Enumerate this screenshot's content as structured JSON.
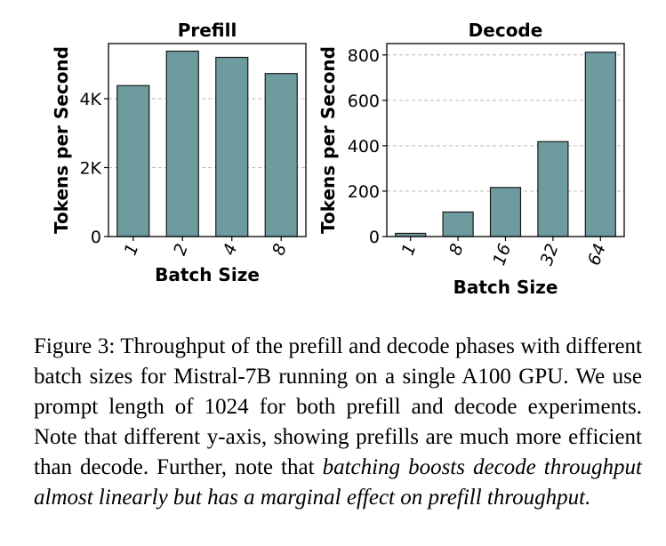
{
  "chart_data": [
    {
      "type": "bar",
      "title": "Prefill",
      "xlabel": "Batch Size",
      "ylabel": "Tokens per Second",
      "categories": [
        "1",
        "2",
        "4",
        "8"
      ],
      "values": [
        4380,
        5380,
        5200,
        4730
      ],
      "ylim": [
        0,
        5600
      ],
      "yticks": [
        0,
        2000,
        4000
      ],
      "ytick_labels": [
        "0",
        "2K",
        "4K"
      ],
      "grid": true,
      "bar_color": "#6d9b9e"
    },
    {
      "type": "bar",
      "title": "Decode",
      "xlabel": "Batch Size",
      "ylabel": "Tokens per Second",
      "categories": [
        "1",
        "8",
        "16",
        "32",
        "64"
      ],
      "values": [
        14,
        108,
        216,
        418,
        812
      ],
      "ylim": [
        0,
        850
      ],
      "yticks": [
        0,
        200,
        400,
        600,
        800
      ],
      "ytick_labels": [
        "0",
        "200",
        "400",
        "600",
        "800"
      ],
      "grid": true,
      "bar_color": "#6d9b9e"
    }
  ],
  "caption": {
    "text": "Figure 3: Throughput of the prefill and decode phases with different batch sizes for Mistral-7B running on a single A100 GPU. We use prompt length of 1024 for both prefill and decode experiments. Note that different y-axis, showing prefills are much more efficient than decode. Further, note that ",
    "emphasis": "batching boosts decode throughput almost linearly but has a marginal effect on prefill throughput."
  }
}
